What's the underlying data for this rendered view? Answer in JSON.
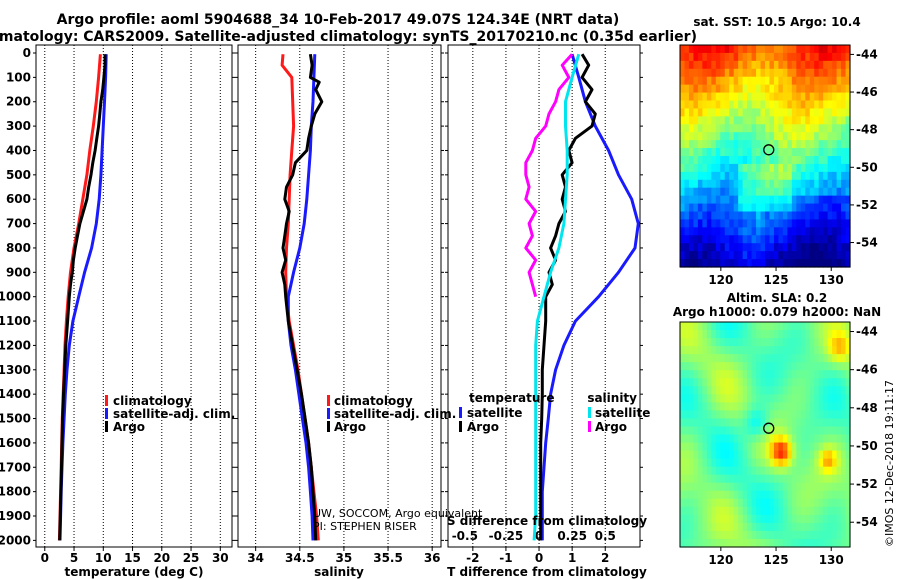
{
  "title": {
    "line1": "Argo profile: aoml 5904688_34 10-Feb-2017 49.07S 124.34E (NRT data)",
    "line2": "Climatology: CARS2009. Satellite-adjusted climatology: synTS_20170210.nc (0.35d earlier)"
  },
  "colors": {
    "climatology": "#ff1a1a",
    "satellite": "#1a1aff",
    "argo": "#000000",
    "sat_salinity": "#00e5ee",
    "argo_salinity_diff": "#ff00ff"
  },
  "chart_data": [
    {
      "id": "temperature",
      "type": "line",
      "xlabel": "temperature (deg C)",
      "xlim": [
        -1.5,
        32
      ],
      "xticks": [
        "0",
        "5",
        "10",
        "15",
        "20",
        "25",
        "30"
      ],
      "xtick_values": [
        0,
        5,
        10,
        15,
        20,
        25,
        30
      ],
      "ylim": [
        2060,
        0
      ],
      "yticks": [
        "0",
        "100",
        "200",
        "300",
        "400",
        "500",
        "600",
        "700",
        "800",
        "900",
        "1000",
        "1100",
        "1200",
        "1300",
        "1400",
        "1500",
        "1600",
        "1700",
        "1800",
        "1900",
        "2000"
      ],
      "legend": {
        "position": "lower-right",
        "entries": [
          "climatology",
          "satellite-adj. clim.",
          "Argo"
        ]
      },
      "series": [
        {
          "name": "climatology",
          "color": "#ff1a1a",
          "depth": [
            5,
            100,
            200,
            300,
            400,
            500,
            600,
            700,
            800,
            900,
            1000,
            1100,
            1200,
            1300,
            1400,
            1500,
            1600,
            1700,
            1800,
            1900,
            2000
          ],
          "values": [
            9.5,
            9.2,
            8.8,
            8.3,
            7.7,
            7.2,
            6.5,
            5.8,
            5.0,
            4.4,
            4.0,
            3.7,
            3.45,
            3.3,
            3.15,
            3.0,
            2.9,
            2.8,
            2.7,
            2.6,
            2.5
          ]
        },
        {
          "name": "satellite-adj. clim.",
          "color": "#1a1aff",
          "depth": [
            5,
            100,
            200,
            300,
            400,
            500,
            600,
            700,
            800,
            900,
            1000,
            1100,
            1200,
            1300,
            1400,
            1500,
            1600,
            1700,
            1800,
            1900,
            2000
          ],
          "values": [
            10.5,
            10.4,
            10.2,
            10.0,
            9.8,
            9.6,
            9.3,
            8.8,
            8.0,
            6.8,
            5.8,
            4.8,
            4.2,
            3.8,
            3.5,
            3.3,
            3.1,
            2.95,
            2.8,
            2.7,
            2.6
          ]
        },
        {
          "name": "Argo",
          "color": "#000000",
          "depth": [
            5,
            50,
            100,
            150,
            200,
            250,
            300,
            350,
            400,
            450,
            500,
            550,
            600,
            650,
            700,
            750,
            800,
            850,
            900,
            950,
            1000,
            1100,
            1200,
            1300,
            1400,
            1500,
            1600,
            1700,
            1800,
            1900,
            2000
          ],
          "values": [
            10.3,
            10.3,
            10.1,
            9.9,
            9.6,
            9.4,
            9.2,
            8.9,
            8.6,
            8.2,
            7.9,
            7.5,
            7.2,
            6.6,
            6.0,
            5.6,
            5.2,
            4.9,
            4.7,
            4.4,
            4.2,
            3.9,
            3.6,
            3.4,
            3.2,
            3.05,
            2.95,
            2.85,
            2.75,
            2.65,
            2.55
          ]
        }
      ]
    },
    {
      "id": "salinity",
      "type": "line",
      "xlabel": "salinity",
      "xlim": [
        33.8,
        36.1
      ],
      "xticks": [
        "34",
        "34.5",
        "35",
        "35.5",
        "36"
      ],
      "xtick_values": [
        34,
        34.5,
        35,
        35.5,
        36
      ],
      "ylim": [
        2060,
        0
      ],
      "legend": {
        "position": "lower-right",
        "entries": [
          "climatology",
          "satellite-adj. clim.",
          "Argo"
        ]
      },
      "annotations": [
        "UW, SOCCOM, Argo equivalent",
        "PI: STEPHEN RISER"
      ],
      "series": [
        {
          "name": "climatology",
          "color": "#ff1a1a",
          "depth": [
            5,
            50,
            100,
            200,
            300,
            400,
            500,
            600,
            700,
            800,
            900,
            1000,
            1100,
            1200,
            1300,
            1400,
            1500,
            1600,
            1700,
            1800,
            1900,
            2000
          ],
          "values": [
            34.31,
            34.3,
            34.41,
            34.42,
            34.43,
            34.41,
            34.39,
            34.38,
            34.37,
            34.35,
            34.34,
            34.35,
            34.38,
            34.43,
            34.48,
            34.52,
            34.56,
            34.6,
            34.63,
            34.66,
            34.69,
            34.71
          ]
        },
        {
          "name": "satellite-adj. clim.",
          "color": "#1a1aff",
          "depth": [
            5,
            100,
            200,
            300,
            400,
            500,
            600,
            700,
            800,
            900,
            1000,
            1100,
            1200,
            1300,
            1400,
            1500,
            1600,
            1700,
            1800,
            1900,
            2000
          ],
          "values": [
            34.67,
            34.66,
            34.65,
            34.63,
            34.62,
            34.6,
            34.58,
            34.55,
            34.5,
            34.43,
            34.37,
            34.37,
            34.4,
            34.45,
            34.49,
            34.53,
            34.57,
            34.6,
            34.62,
            34.64,
            34.65
          ]
        },
        {
          "name": "Argo",
          "color": "#000000",
          "depth": [
            5,
            50,
            100,
            120,
            150,
            200,
            250,
            300,
            350,
            400,
            450,
            500,
            550,
            600,
            650,
            700,
            750,
            800,
            850,
            900,
            950,
            1000,
            1100,
            1200,
            1300,
            1400,
            1500,
            1600,
            1700,
            1800,
            1900,
            2000
          ],
          "values": [
            34.62,
            34.64,
            34.62,
            34.72,
            34.68,
            34.75,
            34.67,
            34.63,
            34.6,
            34.58,
            34.45,
            34.42,
            34.35,
            34.33,
            34.38,
            34.35,
            34.33,
            34.31,
            34.34,
            34.3,
            34.33,
            34.34,
            34.37,
            34.42,
            34.47,
            34.52,
            34.56,
            34.6,
            34.63,
            34.65,
            34.67,
            34.68
          ]
        }
      ]
    },
    {
      "id": "difference",
      "type": "line",
      "xlabel": "T difference from climatology",
      "x2label": "S difference from climatology",
      "xlim": [
        -2.75,
        3.05
      ],
      "xticks": [
        "-2",
        "-1",
        "0",
        "1",
        "2"
      ],
      "xtick_values": [
        -2,
        -1,
        0,
        1,
        2
      ],
      "x2ticks": [
        "-0.5",
        "-0.25",
        "0",
        "0.25",
        "0.5"
      ],
      "x2tick_values": [
        -2,
        -1,
        0,
        1,
        2
      ],
      "ylim": [
        2060,
        0
      ],
      "legend": {
        "position": "lower-right",
        "temperature_header": "temperature",
        "salinity_header": "salinity",
        "temperature_entries": [
          "satellite",
          "Argo"
        ],
        "salinity_entries": [
          "satellite",
          "Argo"
        ]
      },
      "series": [
        {
          "name": "temperature satellite",
          "color": "#1a1aff",
          "depth": [
            5,
            100,
            200,
            300,
            400,
            500,
            600,
            700,
            800,
            900,
            1000,
            1100,
            1200,
            1300,
            1400,
            1500,
            1600,
            1700,
            1800,
            1900,
            2000
          ],
          "values": [
            1.0,
            1.2,
            1.4,
            1.7,
            2.1,
            2.4,
            2.8,
            3.0,
            2.9,
            2.4,
            1.8,
            1.1,
            0.75,
            0.5,
            0.35,
            0.28,
            0.2,
            0.15,
            0.1,
            0.1,
            0.1
          ]
        },
        {
          "name": "temperature Argo",
          "color": "#000000",
          "depth": [
            5,
            50,
            100,
            150,
            200,
            250,
            300,
            350,
            400,
            450,
            500,
            550,
            600,
            650,
            700,
            750,
            800,
            850,
            900,
            950,
            1000,
            1100,
            1200,
            1300,
            1400,
            1500,
            1600,
            1700,
            1800,
            1900,
            2000
          ],
          "values": [
            1.3,
            1.5,
            1.3,
            1.6,
            1.4,
            1.7,
            1.6,
            1.1,
            0.9,
            1.0,
            0.7,
            0.8,
            0.7,
            0.8,
            0.6,
            0.5,
            0.35,
            0.5,
            0.3,
            0.4,
            0.2,
            0.2,
            0.15,
            0.1,
            0.1,
            0.08,
            0.05,
            0.05,
            0.05,
            0.05,
            0.05
          ]
        },
        {
          "name": "salinity satellite",
          "color": "#00e5ee",
          "depth": [
            5,
            100,
            200,
            300,
            400,
            500,
            600,
            700,
            800,
            900,
            1000,
            1100,
            1200,
            1300,
            1400,
            1500,
            1600,
            1700,
            1800,
            1900,
            2000
          ],
          "values": [
            1.2,
            1.0,
            0.8,
            0.8,
            0.85,
            0.85,
            0.8,
            0.75,
            0.6,
            0.35,
            0.15,
            -0.05,
            -0.1,
            -0.1,
            -0.1,
            -0.1,
            -0.1,
            -0.1,
            -0.1,
            -0.1,
            -0.15
          ]
        },
        {
          "name": "salinity Argo",
          "color": "#ff00ff",
          "depth": [
            5,
            50,
            100,
            150,
            200,
            250,
            300,
            350,
            400,
            450,
            500,
            550,
            600,
            650,
            700,
            750,
            800,
            850,
            900,
            950,
            1000
          ],
          "values": [
            1.0,
            0.7,
            0.9,
            0.6,
            0.5,
            0.3,
            0.2,
            -0.1,
            -0.2,
            -0.4,
            -0.4,
            -0.3,
            -0.4,
            -0.1,
            -0.3,
            -0.2,
            -0.4,
            -0.1,
            -0.3,
            -0.2,
            -0.1
          ]
        }
      ]
    },
    {
      "id": "sst-map",
      "type": "heatmap",
      "title": "sat. SST: 10.5 Argo: 10.4",
      "xticks": [
        "120",
        "125",
        "130"
      ],
      "xtick_values": [
        120,
        125,
        130
      ],
      "yticks": [
        "-44",
        "-46",
        "-48",
        "-50",
        "-52",
        "-54"
      ],
      "ytick_values": [
        -44,
        -46,
        -48,
        -50,
        -52,
        -54
      ],
      "xlim": [
        116.3,
        131.7
      ],
      "ylim": [
        -55.3,
        -43.5
      ],
      "marker": {
        "lon": 124.34,
        "lat": -49.07
      }
    },
    {
      "id": "sla-map",
      "type": "heatmap",
      "title": "Altim. SLA: 0.2",
      "subtitle": "Argo h1000: 0.079 h2000: NaN",
      "xticks": [
        "120",
        "125",
        "130"
      ],
      "xtick_values": [
        120,
        125,
        130
      ],
      "yticks": [
        "-44",
        "-46",
        "-48",
        "-50",
        "-52",
        "-54"
      ],
      "ytick_values": [
        -44,
        -46,
        -48,
        -50,
        -52,
        -54
      ],
      "xlim": [
        116.3,
        131.7
      ],
      "ylim": [
        -55.3,
        -43.5
      ],
      "marker": {
        "lon": 124.34,
        "lat": -49.07
      }
    }
  ],
  "credit": "©IMOS 12-Dec-2018 19:11:17"
}
